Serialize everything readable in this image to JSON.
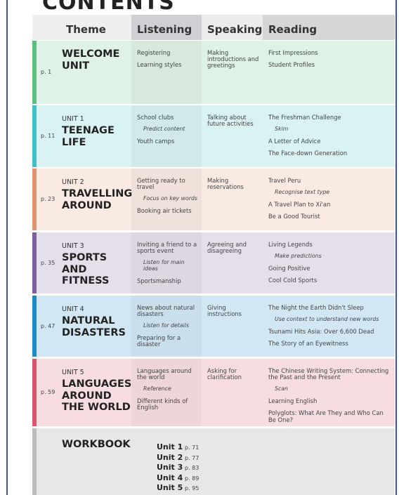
{
  "title": "CONTENTS",
  "headers": [
    "Theme",
    "Listening",
    "Speaking",
    "Reading"
  ],
  "units": [
    {
      "page": "p. 1",
      "theme": "WELCOME UNIT",
      "color": "#5bbf7f",
      "listening": [
        {
          "text": "Registering"
        },
        {
          "text": "Learning styles"
        }
      ],
      "speaking": [
        {
          "text": "Making introductions and greetings"
        }
      ],
      "reading": [
        {
          "text": "First Impressions"
        },
        {
          "text": "Student Profiles"
        }
      ]
    },
    {
      "page": "p. 11",
      "unit": "UNIT 1",
      "theme": "TEENAGE LIFE",
      "color": "#3fbfc8",
      "listening": [
        {
          "text": "School clubs"
        },
        {
          "strategy": "Predict content"
        },
        {
          "text": "Youth camps"
        }
      ],
      "speaking": [
        {
          "text": "Talking about future activities"
        }
      ],
      "reading": [
        {
          "text": "The Freshman Challenge"
        },
        {
          "strategy": "Skim"
        },
        {
          "text": "A Letter of Advice"
        },
        {
          "text": "The Face-down Generation"
        }
      ]
    },
    {
      "page": "p. 23",
      "unit": "UNIT 2",
      "theme": "TRAVELLING AROUND",
      "color": "#e0946e",
      "listening": [
        {
          "text": "Getting ready to travel"
        },
        {
          "strategy": "Focus on key words"
        },
        {
          "text": "Booking air tickets"
        }
      ],
      "speaking": [
        {
          "text": "Making reservations"
        }
      ],
      "reading": [
        {
          "text": "Travel Peru"
        },
        {
          "strategy": "Recognise text type"
        },
        {
          "text": "A Travel Plan to Xi'an"
        },
        {
          "text": "Be a Good Tourist"
        }
      ]
    },
    {
      "page": "p. 35",
      "unit": "UNIT 3",
      "theme": "SPORTS AND FITNESS",
      "color": "#7b5fa0",
      "listening": [
        {
          "text": "Inviting a friend to a sports event"
        },
        {
          "strategy": "Listen for main ideas"
        },
        {
          "text": "Sportsmanship"
        }
      ],
      "speaking": [
        {
          "text": "Agreeing and disagreeing"
        }
      ],
      "reading": [
        {
          "text": "Living Legends"
        },
        {
          "strategy": "Make predictions"
        },
        {
          "text": "Going Positive"
        },
        {
          "text": "Cool Cold Sports"
        }
      ]
    },
    {
      "page": "p. 47",
      "unit": "UNIT 4",
      "theme": "NATURAL DISASTERS",
      "color": "#1a8cc8",
      "listening": [
        {
          "text": "News about natural disasters"
        },
        {
          "strategy": "Listen for details"
        },
        {
          "text": "Preparing for a disaster"
        }
      ],
      "speaking": [
        {
          "text": "Giving instructions"
        }
      ],
      "reading": [
        {
          "text": "The Night the Earth Didn't Sleep"
        },
        {
          "strategy": "Use context to understand new words"
        },
        {
          "text": "Tsunami Hits Asia: Over 6,600 Dead"
        },
        {
          "text": "The Story of an Eyewitness"
        }
      ]
    },
    {
      "page": "p. 59",
      "unit": "UNIT 5",
      "theme": "LANGUAGES AROUND THE WORLD",
      "color": "#d9566e",
      "listening": [
        {
          "text": "Languages around the world"
        },
        {
          "strategy": "Reference"
        },
        {
          "text": "Different kinds of English"
        }
      ],
      "speaking": [
        {
          "text": "Asking for clarification"
        }
      ],
      "reading": [
        {
          "text": "The Chinese Writing System: Connecting the Past and the Present"
        },
        {
          "strategy": "Scan"
        },
        {
          "text": "Learning English"
        },
        {
          "text": "Polyglots: What Are They and Who Can Be One?"
        }
      ]
    }
  ],
  "workbook": {
    "title": "WORKBOOK",
    "color": "#bbbbbb",
    "items": [
      {
        "unit": "Unit 1",
        "page": "p. 71"
      },
      {
        "unit": "Unit 2",
        "page": "p. 77"
      },
      {
        "unit": "Unit 3",
        "page": "p. 83"
      },
      {
        "unit": "Unit 4",
        "page": "p. 89"
      },
      {
        "unit": "Unit 5",
        "page": "p. 95"
      }
    ]
  }
}
